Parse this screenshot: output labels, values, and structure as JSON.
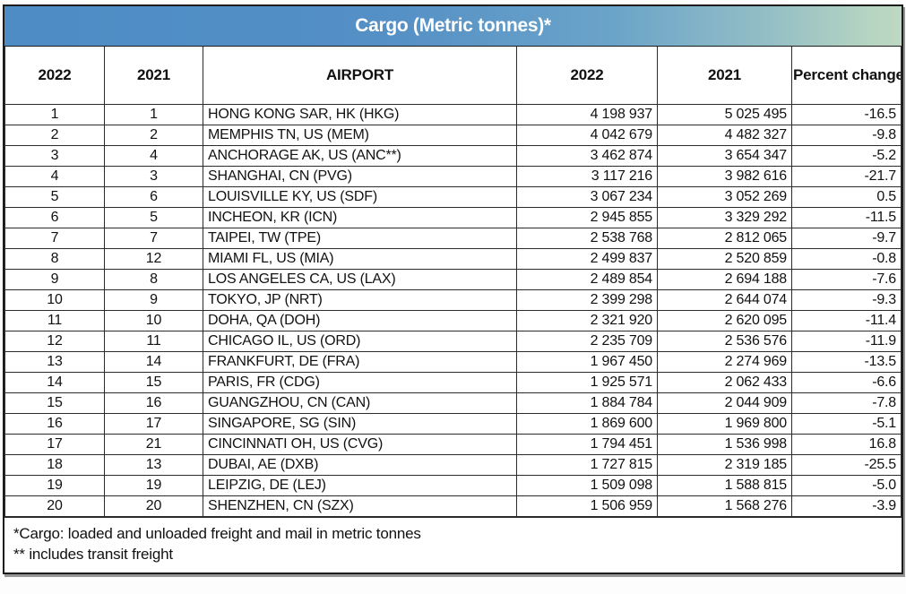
{
  "title": "Cargo (Metric tonnes)*",
  "columns": {
    "rank_2022": "2022",
    "rank_2021": "2021",
    "airport": "AIRPORT",
    "cargo_2022": "2022",
    "cargo_2021": "2021",
    "percent_change": "Percent change"
  },
  "table": {
    "rows": [
      {
        "rank_2022": "1",
        "rank_2021": "1",
        "airport": "HONG KONG SAR, HK (HKG)",
        "cargo_2022": "4 198 937",
        "cargo_2021": "5 025 495",
        "percent_change": "-16.5"
      },
      {
        "rank_2022": "2",
        "rank_2021": "2",
        "airport": "MEMPHIS TN, US (MEM)",
        "cargo_2022": "4 042 679",
        "cargo_2021": "4 482 327",
        "percent_change": "-9.8"
      },
      {
        "rank_2022": "3",
        "rank_2021": "4",
        "airport": "ANCHORAGE AK, US (ANC**)",
        "cargo_2022": "3 462 874",
        "cargo_2021": "3 654 347",
        "percent_change": "-5.2"
      },
      {
        "rank_2022": "4",
        "rank_2021": "3",
        "airport": "SHANGHAI, CN (PVG)",
        "cargo_2022": "3 117 216",
        "cargo_2021": "3 982 616",
        "percent_change": "-21.7"
      },
      {
        "rank_2022": "5",
        "rank_2021": "6",
        "airport": "LOUISVILLE KY, US (SDF)",
        "cargo_2022": "3 067 234",
        "cargo_2021": "3 052 269",
        "percent_change": "0.5"
      },
      {
        "rank_2022": "6",
        "rank_2021": "5",
        "airport": "INCHEON, KR (ICN)",
        "cargo_2022": "2 945 855",
        "cargo_2021": "3 329 292",
        "percent_change": "-11.5"
      },
      {
        "rank_2022": "7",
        "rank_2021": "7",
        "airport": "TAIPEI, TW (TPE)",
        "cargo_2022": "2 538 768",
        "cargo_2021": "2 812 065",
        "percent_change": "-9.7"
      },
      {
        "rank_2022": "8",
        "rank_2021": "12",
        "airport": "MIAMI FL, US (MIA)",
        "cargo_2022": "2 499 837",
        "cargo_2021": "2 520 859",
        "percent_change": "-0.8"
      },
      {
        "rank_2022": "9",
        "rank_2021": "8",
        "airport": "LOS ANGELES CA, US (LAX)",
        "cargo_2022": "2 489 854",
        "cargo_2021": "2 694 188",
        "percent_change": "-7.6"
      },
      {
        "rank_2022": "10",
        "rank_2021": "9",
        "airport": "TOKYO, JP (NRT)",
        "cargo_2022": "2 399 298",
        "cargo_2021": "2 644 074",
        "percent_change": "-9.3"
      },
      {
        "rank_2022": "11",
        "rank_2021": "10",
        "airport": "DOHA, QA (DOH)",
        "cargo_2022": "2 321 920",
        "cargo_2021": "2 620 095",
        "percent_change": "-11.4"
      },
      {
        "rank_2022": "12",
        "rank_2021": "11",
        "airport": "CHICAGO IL, US (ORD)",
        "cargo_2022": "2 235 709",
        "cargo_2021": "2 536 576",
        "percent_change": "-11.9"
      },
      {
        "rank_2022": "13",
        "rank_2021": "14",
        "airport": "FRANKFURT, DE (FRA)",
        "cargo_2022": "1 967 450",
        "cargo_2021": "2 274 969",
        "percent_change": "-13.5"
      },
      {
        "rank_2022": "14",
        "rank_2021": "15",
        "airport": "PARIS, FR (CDG)",
        "cargo_2022": "1 925 571",
        "cargo_2021": "2 062 433",
        "percent_change": "-6.6"
      },
      {
        "rank_2022": "15",
        "rank_2021": "16",
        "airport": "GUANGZHOU, CN (CAN)",
        "cargo_2022": "1 884 784",
        "cargo_2021": "2 044 909",
        "percent_change": "-7.8"
      },
      {
        "rank_2022": "16",
        "rank_2021": "17",
        "airport": "SINGAPORE, SG (SIN)",
        "cargo_2022": "1 869 600",
        "cargo_2021": "1 969 800",
        "percent_change": "-5.1"
      },
      {
        "rank_2022": "17",
        "rank_2021": "21",
        "airport": "CINCINNATI OH, US (CVG)",
        "cargo_2022": "1 794 451",
        "cargo_2021": "1 536 998",
        "percent_change": "16.8"
      },
      {
        "rank_2022": "18",
        "rank_2021": "13",
        "airport": "DUBAI, AE (DXB)",
        "cargo_2022": "1 727 815",
        "cargo_2021": "2 319 185",
        "percent_change": "-25.5"
      },
      {
        "rank_2022": "19",
        "rank_2021": "19",
        "airport": "LEIPZIG, DE (LEJ)",
        "cargo_2022": "1 509 098",
        "cargo_2021": "1 588 815",
        "percent_change": "-5.0"
      },
      {
        "rank_2022": "20",
        "rank_2021": "20",
        "airport": "SHENZHEN, CN (SZX)",
        "cargo_2022": "1 506 959",
        "cargo_2021": "1 568 276",
        "percent_change": "-3.9"
      }
    ]
  },
  "footnotes": [
    "*Cargo: loaded and unloaded freight and mail in metric tonnes",
    "** includes transit freight"
  ],
  "colors": {
    "title_gradient_start": "#4d8cc5",
    "title_gradient_end": "#bdd8c3",
    "title_text": "#ffffff",
    "border": "#1c1c1c",
    "body_text": "#111111"
  },
  "chart_data": {
    "type": "table",
    "title": "Cargo (Metric tonnes)*",
    "columns": [
      "2022 rank",
      "2021 rank",
      "AIRPORT",
      "2022 cargo",
      "2021 cargo",
      "Percent change"
    ],
    "rows": [
      [
        1,
        1,
        "HONG KONG SAR, HK (HKG)",
        4198937,
        5025495,
        -16.5
      ],
      [
        2,
        2,
        "MEMPHIS TN, US (MEM)",
        4042679,
        4482327,
        -9.8
      ],
      [
        3,
        4,
        "ANCHORAGE AK, US (ANC**)",
        3462874,
        3654347,
        -5.2
      ],
      [
        4,
        3,
        "SHANGHAI, CN (PVG)",
        3117216,
        3982616,
        -21.7
      ],
      [
        5,
        6,
        "LOUISVILLE KY, US (SDF)",
        3067234,
        3052269,
        0.5
      ],
      [
        6,
        5,
        "INCHEON, KR (ICN)",
        2945855,
        3329292,
        -11.5
      ],
      [
        7,
        7,
        "TAIPEI, TW (TPE)",
        2538768,
        2812065,
        -9.7
      ],
      [
        8,
        12,
        "MIAMI FL, US (MIA)",
        2499837,
        2520859,
        -0.8
      ],
      [
        9,
        8,
        "LOS ANGELES CA, US (LAX)",
        2489854,
        2694188,
        -7.6
      ],
      [
        10,
        9,
        "TOKYO, JP (NRT)",
        2399298,
        2644074,
        -9.3
      ],
      [
        11,
        10,
        "DOHA, QA (DOH)",
        2321920,
        2620095,
        -11.4
      ],
      [
        12,
        11,
        "CHICAGO IL, US (ORD)",
        2235709,
        2536576,
        -11.9
      ],
      [
        13,
        14,
        "FRANKFURT, DE (FRA)",
        1967450,
        2274969,
        -13.5
      ],
      [
        14,
        15,
        "PARIS, FR (CDG)",
        1925571,
        2062433,
        -6.6
      ],
      [
        15,
        16,
        "GUANGZHOU, CN (CAN)",
        1884784,
        2044909,
        -7.8
      ],
      [
        16,
        17,
        "SINGAPORE, SG (SIN)",
        1869600,
        1969800,
        -5.1
      ],
      [
        17,
        21,
        "CINCINNATI OH, US (CVG)",
        1794451,
        1536998,
        16.8
      ],
      [
        18,
        13,
        "DUBAI, AE (DXB)",
        1727815,
        2319185,
        -25.5
      ],
      [
        19,
        19,
        "LEIPZIG, DE (LEJ)",
        1509098,
        1588815,
        -5.0
      ],
      [
        20,
        20,
        "SHENZHEN, CN (SZX)",
        1506959,
        1568276,
        -3.9
      ]
    ]
  }
}
